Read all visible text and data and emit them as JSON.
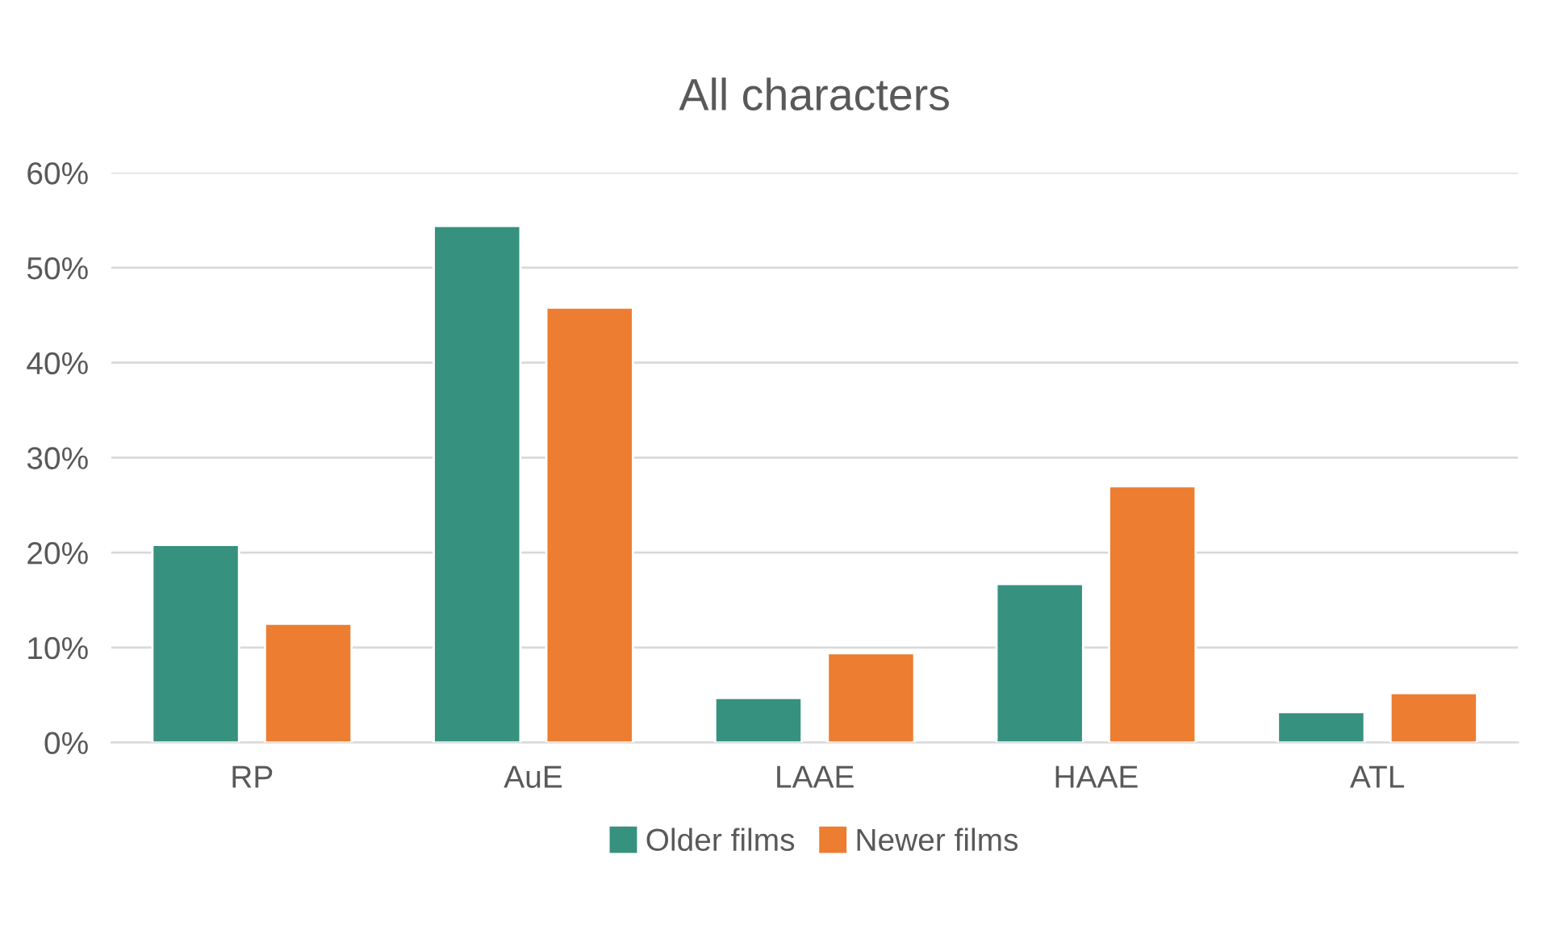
{
  "chart_data": {
    "type": "bar",
    "title": "All characters",
    "categories": [
      "RP",
      "AuE",
      "LAAE",
      "HAAE",
      "ATL"
    ],
    "series": [
      {
        "name": "Older films",
        "color": "#37917f",
        "values": [
          20.8,
          54.4,
          4.7,
          16.7,
          3.2
        ]
      },
      {
        "name": "Newer films",
        "color": "#ed7d31",
        "values": [
          12.5,
          45.8,
          9.4,
          27.0,
          5.2
        ]
      }
    ],
    "ylim": [
      0,
      60
    ],
    "yticks": [
      {
        "value": 0,
        "label": "0%"
      },
      {
        "value": 10,
        "label": "10%"
      },
      {
        "value": 20,
        "label": "20%"
      },
      {
        "value": 30,
        "label": "30%"
      },
      {
        "value": 40,
        "label": "40%"
      },
      {
        "value": 50,
        "label": "50%"
      },
      {
        "value": 60,
        "label": "60%"
      }
    ],
    "grid": "y",
    "legend": "bottom"
  }
}
